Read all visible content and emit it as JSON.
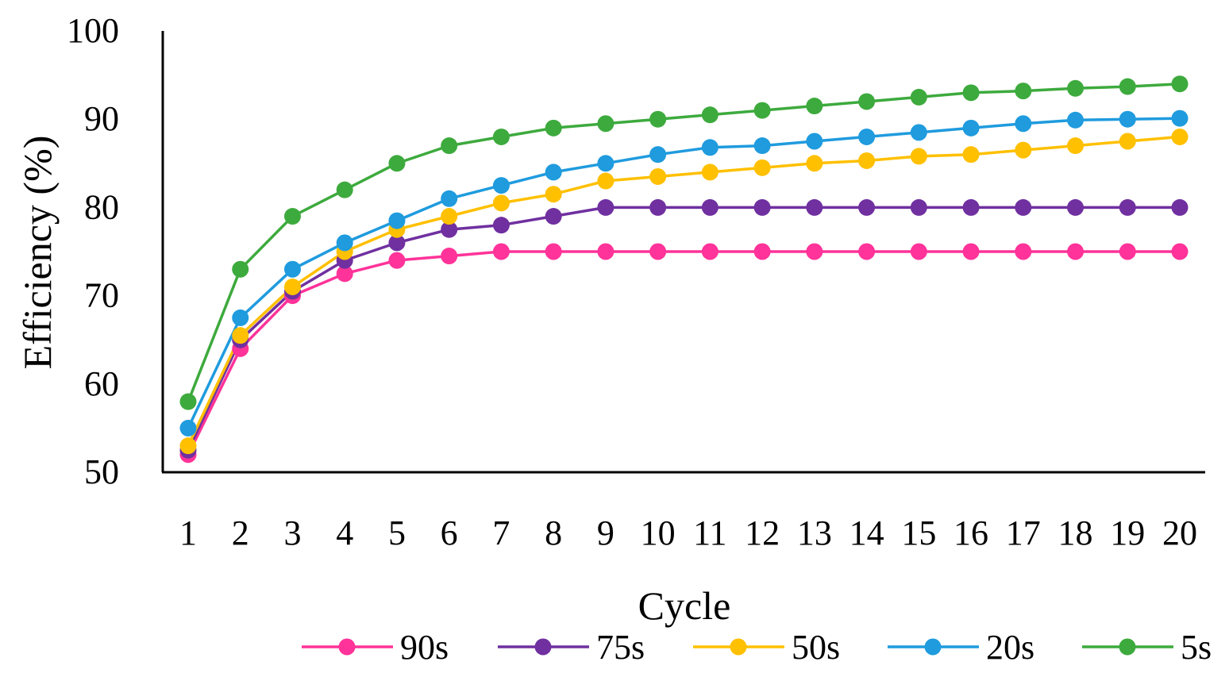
{
  "chart_data": {
    "type": "line",
    "title": "",
    "xlabel": "Cycle",
    "ylabel": "Efficiency (%)",
    "ylim": [
      50,
      100
    ],
    "yticks": [
      50,
      60,
      70,
      80,
      90,
      100
    ],
    "grid": false,
    "legend_position": "bottom",
    "categories": [
      "1",
      "2",
      "3",
      "4",
      "5",
      "6",
      "7",
      "8",
      "9",
      "10",
      "11",
      "12",
      "13",
      "14",
      "15",
      "16",
      "17",
      "18",
      "19",
      "20"
    ],
    "series": [
      {
        "name": "90s",
        "color": "#FF3399",
        "values": [
          52,
          64,
          70,
          72.5,
          74,
          74.5,
          75,
          75,
          75,
          75,
          75,
          75,
          75,
          75,
          75,
          75,
          75,
          75,
          75,
          75
        ]
      },
      {
        "name": "75s",
        "color": "#7030A0",
        "values": [
          52.5,
          65,
          70.5,
          74,
          76,
          77.5,
          78,
          79,
          80,
          80,
          80,
          80,
          80,
          80,
          80,
          80,
          80,
          80,
          80,
          80
        ]
      },
      {
        "name": "50s",
        "color": "#FFC000",
        "values": [
          53,
          65.5,
          71,
          75,
          77.5,
          79,
          80.5,
          81.5,
          83,
          83.5,
          84,
          84.5,
          85,
          85.3,
          85.8,
          86,
          86.5,
          87,
          87.5,
          88
        ]
      },
      {
        "name": "20s",
        "color": "#1F9BDE",
        "values": [
          55,
          67.5,
          73,
          76,
          78.5,
          81,
          82.5,
          84,
          85,
          86,
          86.8,
          87,
          87.5,
          88,
          88.5,
          89,
          89.5,
          89.9,
          90,
          90.1
        ]
      },
      {
        "name": "5s",
        "color": "#3DAA3D",
        "values": [
          58,
          73,
          79,
          82,
          85,
          87,
          88,
          89,
          89.5,
          90,
          90.5,
          91,
          91.5,
          92,
          92.5,
          93,
          93.2,
          93.5,
          93.7,
          94
        ]
      }
    ]
  }
}
